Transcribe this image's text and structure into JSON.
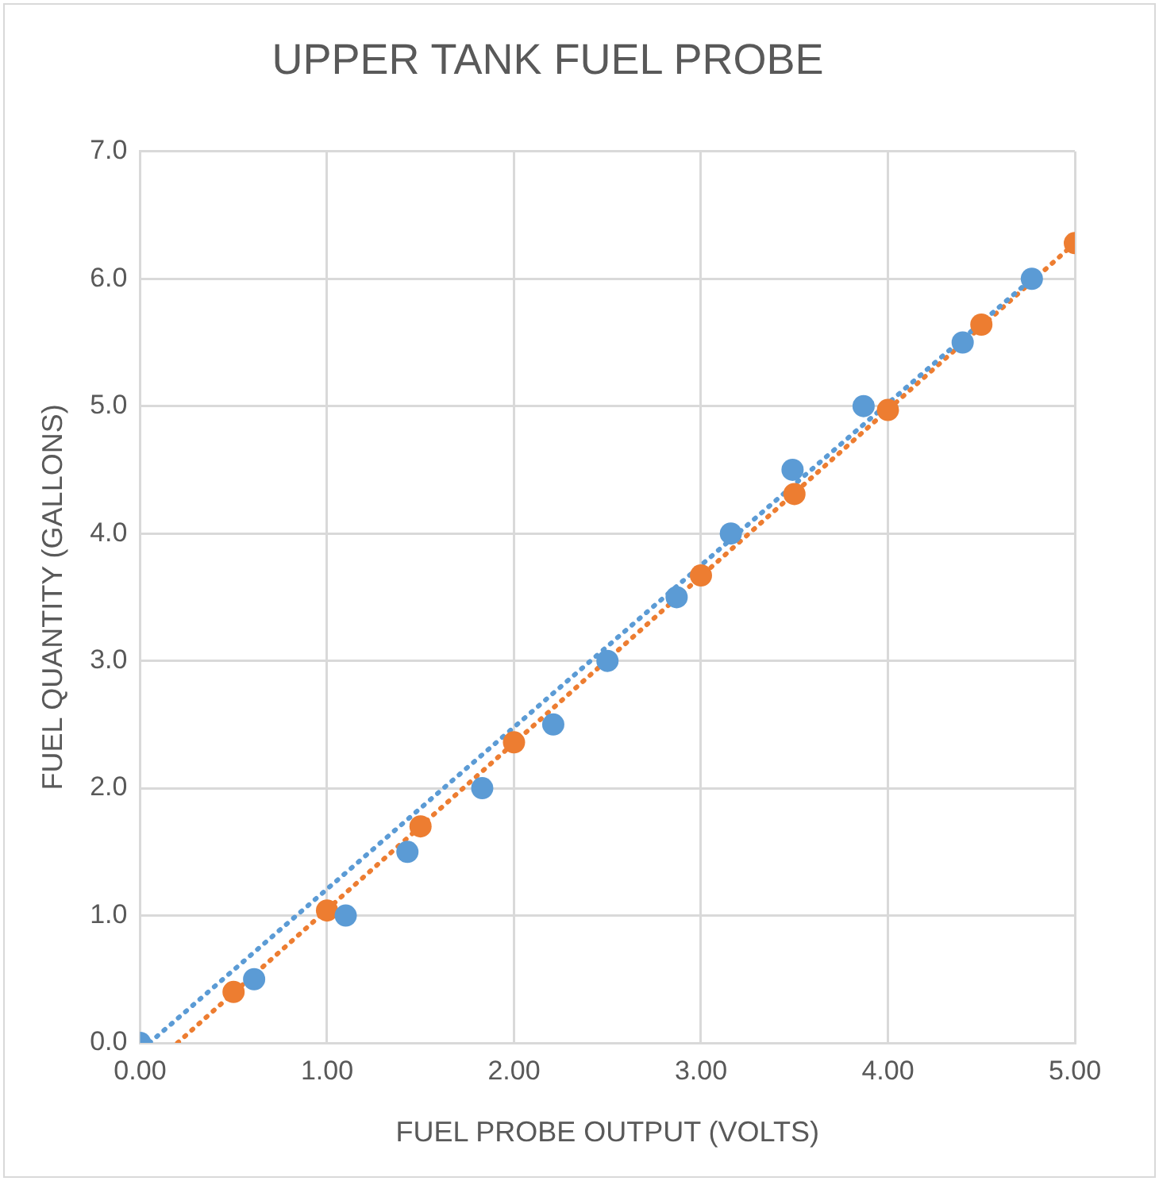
{
  "chart_data": {
    "type": "scatter",
    "title": "UPPER TANK FUEL PROBE",
    "xlabel": "FUEL PROBE OUTPUT (VOLTS)",
    "ylabel": "FUEL QUANTITY (GALLONS)",
    "series": [
      {
        "type": "line",
        "color": "#5b9bd5",
        "line_style": "dotted",
        "marker": "none",
        "x": [
          0.05,
          4.77
        ],
        "values": [
          0,
          6.0
        ]
      },
      {
        "type": "line",
        "color": "#ed7d31",
        "line_style": "dotted",
        "marker": "none",
        "x": [
          0.2,
          5
        ],
        "values": [
          0,
          6.28
        ]
      },
      {
        "color": "#5b9bd5",
        "marker": "circle",
        "x": [
          0,
          0.61,
          1.1,
          1.43,
          1.83,
          2.21,
          2.5,
          2.87,
          3.16,
          3.49,
          3.87,
          4.4,
          4.77
        ],
        "values": [
          0,
          0.5,
          1.0,
          1.5,
          2.0,
          2.5,
          3.0,
          3.5,
          4.0,
          4.5,
          5.0,
          5.5,
          6.0
        ]
      },
      {
        "color": "#ed7d31",
        "marker": "circle",
        "x": [
          0.5,
          1,
          1.5,
          2,
          2.5,
          3,
          3.5,
          4,
          4.5,
          5
        ],
        "values": [
          0.4,
          1.04,
          1.7,
          2.36,
          null,
          3.67,
          4.31,
          4.97,
          5.64,
          6.28
        ]
      }
    ],
    "xlim": [
      0,
      5
    ],
    "xticks": [
      {
        "value": 0,
        "label": "0.00"
      },
      {
        "value": 1,
        "label": "1.00"
      },
      {
        "value": 2,
        "label": "2.00"
      },
      {
        "value": 3,
        "label": "3.00"
      },
      {
        "value": 4,
        "label": "4.00"
      },
      {
        "value": 5,
        "label": "5.00"
      }
    ],
    "ylim": [
      0,
      7
    ],
    "yticks": [
      {
        "value": 0,
        "label": "0.0"
      },
      {
        "value": 1,
        "label": "1.0"
      },
      {
        "value": 2,
        "label": "2.0"
      },
      {
        "value": 3,
        "label": "3.0"
      },
      {
        "value": 4,
        "label": "4.0"
      },
      {
        "value": 5,
        "label": "5.0"
      },
      {
        "value": 6,
        "label": "6.0"
      },
      {
        "value": 7,
        "label": "7.0"
      }
    ],
    "grid": true,
    "legend": false
  }
}
